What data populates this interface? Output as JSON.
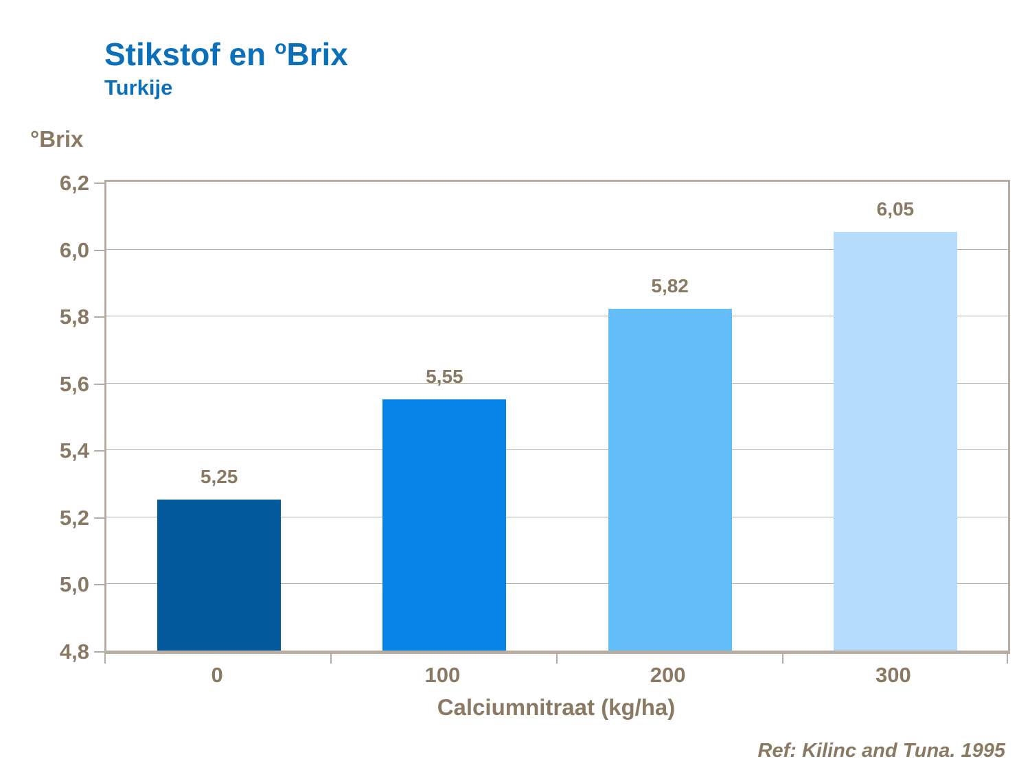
{
  "header": {
    "title_main": "Stikstof en ",
    "title_sup": "o",
    "title_rest": "Brix",
    "subtitle": "Turkije"
  },
  "footer": {
    "reference": "Ref: Kilinc and Tuna. 1995"
  },
  "colors": {
    "title_blue": "#0C70B8",
    "text_brown": "#8A7963",
    "axis_tan": "#B9ACA0",
    "gridline_tan": "#B5AB9E"
  },
  "chart_data": {
    "type": "bar",
    "title": "Stikstof en oBrix — Turkije",
    "categories": [
      "0",
      "100",
      "200",
      "300"
    ],
    "values": [
      5.25,
      5.55,
      5.82,
      6.05
    ],
    "value_labels": [
      "5,25",
      "5,55",
      "5,82",
      "6,05"
    ],
    "bar_colors": [
      "#02599C",
      "#0583E6",
      "#62BDF8",
      "#B5DDFB"
    ],
    "xlabel": "Calciumnitraat (kg/ha)",
    "ylabel": "°Brix",
    "ylim": [
      4.8,
      6.2
    ],
    "ytick_step": 0.2,
    "ytick_labels": [
      "4,8",
      "5,0",
      "5,2",
      "5,4",
      "5,6",
      "5,8",
      "6,0",
      "6,2"
    ],
    "grid": true,
    "legend": false,
    "decimal_separator": ","
  }
}
